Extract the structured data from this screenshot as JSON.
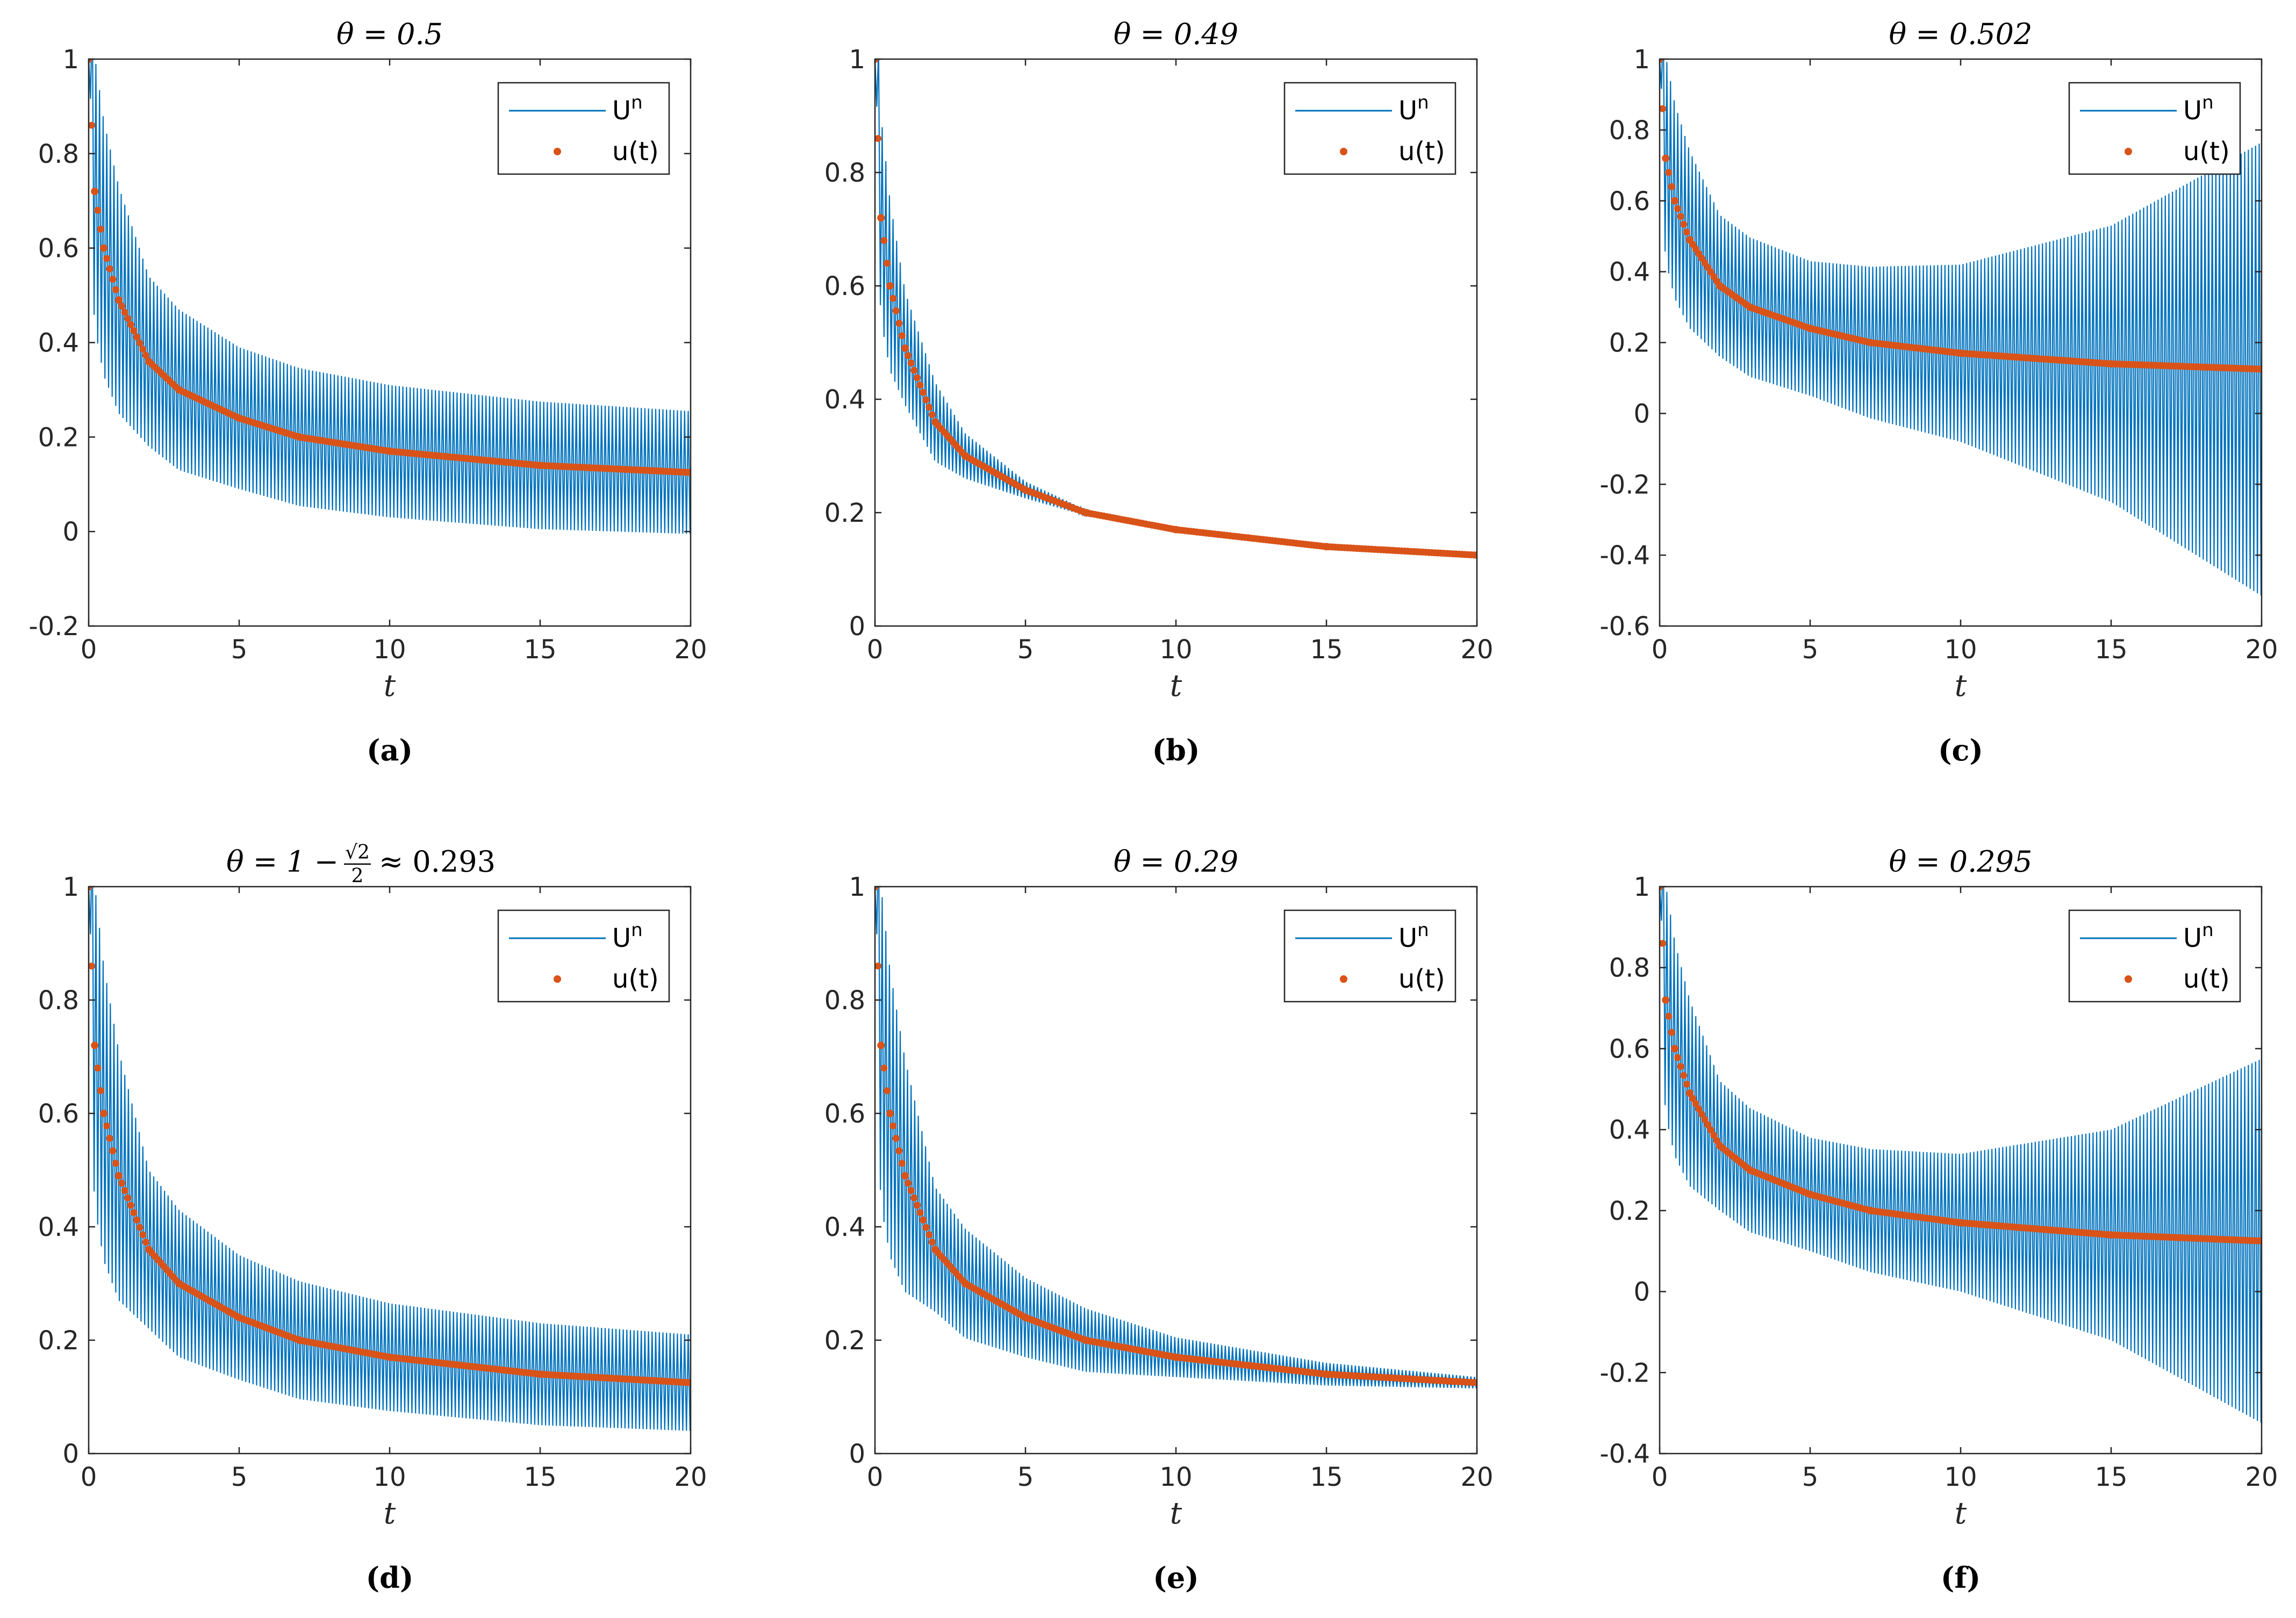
{
  "figure": {
    "series_colors": {
      "Un": "#0072BD",
      "ut": "#D95319"
    },
    "legend_labels": {
      "Un": "U",
      "Un_sup": "n",
      "ut": "u(t)"
    }
  },
  "chart_data": [
    {
      "type": "line",
      "panel_label": "(a)",
      "title": "θ = 0.5",
      "xlabel": "t",
      "ylabel": "",
      "xlim": [
        0,
        20
      ],
      "ylim": [
        -0.2,
        1
      ],
      "xticks": [
        "0",
        "5",
        "10",
        "15",
        "20"
      ],
      "yticks": [
        "-0.2",
        "0",
        "0.2",
        "0.4",
        "0.6",
        "0.8",
        "1"
      ],
      "legend": "top-right",
      "series": [
        {
          "name": "Un",
          "style": "line",
          "description": "oscillating around u(t), band half-width ~0.18 at t=2, ~0.13 at t=20",
          "envelope_halfwidth": {
            "t": [
              0,
              2,
              5,
              10,
              15,
              20
            ],
            "halfwidth": [
              0.3,
              0.18,
              0.15,
              0.14,
              0.135,
              0.13
            ]
          }
        },
        {
          "name": "u(t)",
          "style": "dots",
          "t": [
            0,
            0.2,
            0.5,
            1,
            2,
            3,
            5,
            7,
            10,
            15,
            20
          ],
          "u": [
            1,
            0.72,
            0.6,
            0.49,
            0.36,
            0.3,
            0.24,
            0.2,
            0.17,
            0.14,
            0.125
          ]
        }
      ]
    },
    {
      "type": "line",
      "panel_label": "(b)",
      "title": "θ = 0.49",
      "xlabel": "t",
      "ylabel": "",
      "xlim": [
        0,
        20
      ],
      "ylim": [
        0,
        1
      ],
      "xticks": [
        "0",
        "5",
        "10",
        "15",
        "20"
      ],
      "yticks": [
        "0",
        "0.2",
        "0.4",
        "0.6",
        "0.8",
        "1"
      ],
      "legend": "top-right",
      "series": [
        {
          "name": "Un",
          "style": "line",
          "description": "oscillations decay and vanish by t≈8",
          "envelope_halfwidth": {
            "t": [
              0,
              1,
              3,
              5,
              8,
              20
            ],
            "halfwidth": [
              0.2,
              0.1,
              0.04,
              0.015,
              0,
              0
            ]
          }
        },
        {
          "name": "u(t)",
          "style": "dots",
          "t": [
            0,
            0.2,
            0.5,
            1,
            2,
            3,
            5,
            7,
            10,
            15,
            20
          ],
          "u": [
            1,
            0.72,
            0.6,
            0.49,
            0.36,
            0.3,
            0.24,
            0.2,
            0.17,
            0.14,
            0.125
          ]
        }
      ]
    },
    {
      "type": "line",
      "panel_label": "(c)",
      "title": "θ = 0.502",
      "xlabel": "t",
      "ylabel": "",
      "xlim": [
        0,
        20
      ],
      "ylim": [
        -0.6,
        1
      ],
      "xticks": [
        "0",
        "5",
        "10",
        "15",
        "20"
      ],
      "yticks": [
        "-0.6",
        "-0.4",
        "-0.2",
        "0",
        "0.2",
        "0.4",
        "0.6",
        "0.8",
        "1"
      ],
      "legend": "top-right",
      "series": [
        {
          "name": "Un",
          "style": "line",
          "description": "oscillations grow with t, band ~[-0.52, 0.76] at t=20",
          "envelope_halfwidth": {
            "t": [
              0,
              2,
              5,
              10,
              15,
              20
            ],
            "halfwidth": [
              0.3,
              0.2,
              0.19,
              0.25,
              0.39,
              0.64
            ]
          }
        },
        {
          "name": "u(t)",
          "style": "dots",
          "t": [
            0,
            0.2,
            0.5,
            1,
            2,
            3,
            5,
            7,
            10,
            15,
            20
          ],
          "u": [
            1,
            0.72,
            0.6,
            0.49,
            0.36,
            0.3,
            0.24,
            0.2,
            0.17,
            0.14,
            0.125
          ]
        }
      ]
    },
    {
      "type": "line",
      "panel_label": "(d)",
      "title": "θ = 1 − √2/2 ≈ 0.293",
      "title_parts": {
        "pre": "θ = 1 −",
        "num": "√2",
        "den": "2",
        "post": "≈ 0.293"
      },
      "xlabel": "t",
      "ylabel": "",
      "xlim": [
        0,
        20
      ],
      "ylim": [
        0,
        1
      ],
      "xticks": [
        "0",
        "5",
        "10",
        "15",
        "20"
      ],
      "yticks": [
        "0",
        "0.2",
        "0.4",
        "0.6",
        "0.8",
        "1"
      ],
      "legend": "top-right",
      "series": [
        {
          "name": "Un",
          "style": "line",
          "description": "persistent oscillations, band half-width ~0.085 at t=20",
          "envelope_halfwidth": {
            "t": [
              0,
              2,
              5,
              10,
              15,
              20
            ],
            "halfwidth": [
              0.3,
              0.14,
              0.11,
              0.095,
              0.09,
              0.085
            ]
          }
        },
        {
          "name": "u(t)",
          "style": "dots",
          "t": [
            0,
            0.2,
            0.5,
            1,
            2,
            3,
            5,
            7,
            10,
            15,
            20
          ],
          "u": [
            1,
            0.72,
            0.6,
            0.49,
            0.36,
            0.3,
            0.24,
            0.2,
            0.17,
            0.14,
            0.125
          ]
        }
      ]
    },
    {
      "type": "line",
      "panel_label": "(e)",
      "title": "θ = 0.29",
      "xlabel": "t",
      "ylabel": "",
      "xlim": [
        0,
        20
      ],
      "ylim": [
        0,
        1
      ],
      "xticks": [
        "0",
        "5",
        "10",
        "15",
        "20"
      ],
      "yticks": [
        "0",
        "0.2",
        "0.4",
        "0.6",
        "0.8",
        "1"
      ],
      "legend": "top-right",
      "series": [
        {
          "name": "Un",
          "style": "line",
          "description": "oscillations slowly decaying, band half-width ~0.01 at t=20",
          "envelope_halfwidth": {
            "t": [
              0,
              2,
              5,
              10,
              15,
              20
            ],
            "halfwidth": [
              0.3,
              0.11,
              0.07,
              0.035,
              0.02,
              0.01
            ]
          }
        },
        {
          "name": "u(t)",
          "style": "dots",
          "t": [
            0,
            0.2,
            0.5,
            1,
            2,
            3,
            5,
            7,
            10,
            15,
            20
          ],
          "u": [
            1,
            0.72,
            0.6,
            0.49,
            0.36,
            0.3,
            0.24,
            0.2,
            0.17,
            0.14,
            0.125
          ]
        }
      ]
    },
    {
      "type": "line",
      "panel_label": "(f)",
      "title": "θ = 0.295",
      "xlabel": "t",
      "ylabel": "",
      "xlim": [
        0,
        20
      ],
      "ylim": [
        -0.4,
        1
      ],
      "xticks": [
        "0",
        "5",
        "10",
        "15",
        "20"
      ],
      "yticks": [
        "-0.4",
        "-0.2",
        "0",
        "0.2",
        "0.4",
        "0.6",
        "0.8",
        "1"
      ],
      "legend": "top-right",
      "series": [
        {
          "name": "Un",
          "style": "line",
          "description": "oscillations grow with t, band ~[-0.33, 0.58] at t=20",
          "envelope_halfwidth": {
            "t": [
              0,
              2,
              5,
              10,
              15,
              20
            ],
            "halfwidth": [
              0.3,
              0.16,
              0.14,
              0.17,
              0.26,
              0.45
            ]
          }
        },
        {
          "name": "u(t)",
          "style": "dots",
          "t": [
            0,
            0.2,
            0.5,
            1,
            2,
            3,
            5,
            7,
            10,
            15,
            20
          ],
          "u": [
            1,
            0.72,
            0.6,
            0.49,
            0.36,
            0.3,
            0.24,
            0.2,
            0.17,
            0.14,
            0.125
          ]
        }
      ]
    }
  ]
}
